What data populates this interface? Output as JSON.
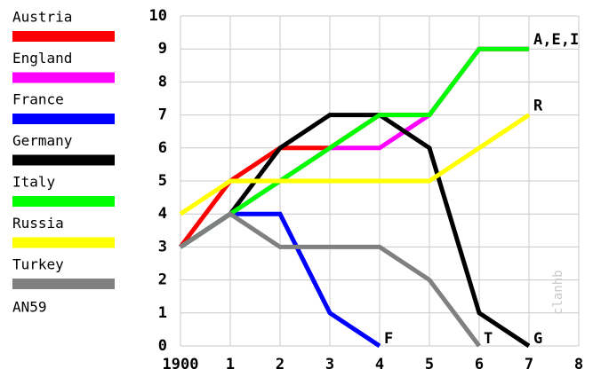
{
  "chart_data": {
    "type": "line",
    "x": [
      0,
      1,
      2,
      3,
      4,
      5,
      6,
      7
    ],
    "xlim": [
      0,
      8
    ],
    "xticks": [
      {
        "value": 0,
        "label": "1900"
      },
      1,
      2,
      3,
      4,
      5,
      6,
      7,
      8
    ],
    "ylim": [
      0,
      10
    ],
    "yticks": [
      0,
      1,
      2,
      3,
      4,
      5,
      6,
      7,
      8,
      9,
      10
    ],
    "grid": true,
    "legend": "left",
    "note": "AN59",
    "watermark": "clanhb",
    "series": [
      {
        "name": "Austria",
        "color": "#ff0000",
        "values": [
          3,
          5,
          6,
          6,
          7,
          7,
          9,
          9
        ]
      },
      {
        "name": "England",
        "color": "#ff00ff",
        "values": [
          3,
          4,
          5,
          6,
          6,
          7,
          9,
          9
        ]
      },
      {
        "name": "France",
        "color": "#0000ff",
        "values": [
          3,
          4,
          4,
          1,
          0,
          null,
          null,
          null
        ],
        "end_label": "F"
      },
      {
        "name": "Germany",
        "color": "#000000",
        "values": [
          3,
          4,
          6,
          7,
          7,
          6,
          1,
          0
        ],
        "end_label": "G"
      },
      {
        "name": "Italy",
        "color": "#00ff00",
        "values": [
          3,
          4,
          5,
          6,
          7,
          7,
          9,
          9
        ],
        "end_label": "A,E,I"
      },
      {
        "name": "Russia",
        "color": "#ffff00",
        "values": [
          4,
          5,
          5,
          5,
          5,
          5,
          6,
          7
        ],
        "end_label": "R"
      },
      {
        "name": "Turkey",
        "color": "#808080",
        "values": [
          3,
          4,
          3,
          3,
          3,
          2,
          0,
          null
        ],
        "end_label": "T"
      }
    ]
  }
}
